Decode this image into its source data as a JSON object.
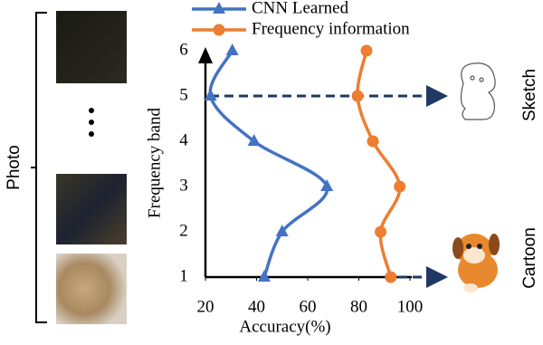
{
  "labels": {
    "left": "Photo",
    "right_top": "Sketch",
    "right_bottom": "Cartoon"
  },
  "chart_data": {
    "type": "line",
    "orientation": "horizontal",
    "xlabel": "Accuracy(%)",
    "ylabel": "Frequency band",
    "categories": [
      1,
      2,
      3,
      4,
      5,
      6
    ],
    "series": [
      {
        "name": "CNN Learned",
        "color": "#4472c4",
        "marker": "triangle",
        "values": [
          43,
          50,
          67.5,
          39,
          22,
          30.5
        ]
      },
      {
        "name": "Frequency information",
        "color": "#ed7d31",
        "marker": "circle",
        "values": [
          92.5,
          88.5,
          96,
          85.5,
          79.5,
          83
        ]
      }
    ],
    "xlim": [
      20,
      100
    ],
    "xticks": [
      20,
      40,
      60,
      80,
      100
    ],
    "ylim": [
      1,
      6
    ],
    "smooth": true
  }
}
